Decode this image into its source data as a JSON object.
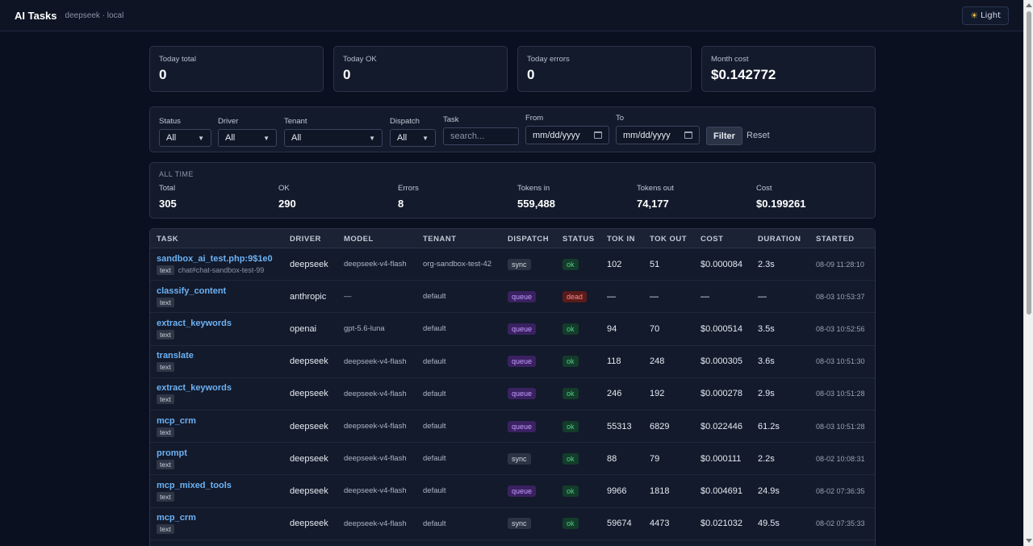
{
  "header": {
    "title": "AI Tasks",
    "subtitle": "deepseek · local",
    "theme_label": "Light",
    "theme_icon": "sun-icon"
  },
  "summary": [
    {
      "label": "Today total",
      "value": "0"
    },
    {
      "label": "Today OK",
      "value": "0"
    },
    {
      "label": "Today errors",
      "value": "0"
    },
    {
      "label": "Month cost",
      "value": "$0.142772"
    }
  ],
  "filters": {
    "status": {
      "label": "Status",
      "value": "All"
    },
    "driver": {
      "label": "Driver",
      "value": "All"
    },
    "tenant": {
      "label": "Tenant",
      "value": "All"
    },
    "dispatch": {
      "label": "Dispatch",
      "value": "All"
    },
    "task": {
      "label": "Task",
      "placeholder": "search..."
    },
    "from": {
      "label": "From",
      "placeholder": "mm/dd/yyyy"
    },
    "to": {
      "label": "To",
      "placeholder": "mm/dd/yyyy"
    },
    "filter_button": "Filter",
    "reset_button": "Reset"
  },
  "all_time": {
    "title": "ALL TIME",
    "stats": [
      {
        "label": "Total",
        "value": "305"
      },
      {
        "label": "OK",
        "value": "290"
      },
      {
        "label": "Errors",
        "value": "8"
      },
      {
        "label": "Tokens in",
        "value": "559,488"
      },
      {
        "label": "Tokens out",
        "value": "74,177"
      },
      {
        "label": "Cost",
        "value": "$0.199261"
      }
    ]
  },
  "table": {
    "columns": [
      "TASK",
      "DRIVER",
      "MODEL",
      "TENANT",
      "DISPATCH",
      "STATUS",
      "TOK IN",
      "TOK OUT",
      "COST",
      "DURATION",
      "STARTED"
    ],
    "rows": [
      {
        "task": "sandbox_ai_test.php:9$1e0",
        "tag": "text",
        "extra": "chat#chat-sandbox-test-99",
        "driver": "deepseek",
        "model": "deepseek-v4-flash",
        "tenant": "org-sandbox-test-42",
        "dispatch": "sync",
        "status": "ok",
        "tok_in": "102",
        "tok_out": "51",
        "cost": "$0.000084",
        "duration": "2.3s",
        "started": "08-09 11:28:10"
      },
      {
        "task": "classify_content",
        "tag": "text",
        "extra": "",
        "driver": "anthropic",
        "model": "—",
        "tenant": "default",
        "dispatch": "queue",
        "status": "dead",
        "tok_in": "—",
        "tok_out": "—",
        "cost": "—",
        "duration": "—",
        "started": "08-03 10:53:37"
      },
      {
        "task": "extract_keywords",
        "tag": "text",
        "extra": "",
        "driver": "openai",
        "model": "gpt-5.6-luna",
        "tenant": "default",
        "dispatch": "queue",
        "status": "ok",
        "tok_in": "94",
        "tok_out": "70",
        "cost": "$0.000514",
        "duration": "3.5s",
        "started": "08-03 10:52:56"
      },
      {
        "task": "translate",
        "tag": "text",
        "extra": "",
        "driver": "deepseek",
        "model": "deepseek-v4-flash",
        "tenant": "default",
        "dispatch": "queue",
        "status": "ok",
        "tok_in": "118",
        "tok_out": "248",
        "cost": "$0.000305",
        "duration": "3.6s",
        "started": "08-03 10:51:30"
      },
      {
        "task": "extract_keywords",
        "tag": "text",
        "extra": "",
        "driver": "deepseek",
        "model": "deepseek-v4-flash",
        "tenant": "default",
        "dispatch": "queue",
        "status": "ok",
        "tok_in": "246",
        "tok_out": "192",
        "cost": "$0.000278",
        "duration": "2.9s",
        "started": "08-03 10:51:28"
      },
      {
        "task": "mcp_crm",
        "tag": "text",
        "extra": "",
        "driver": "deepseek",
        "model": "deepseek-v4-flash",
        "tenant": "default",
        "dispatch": "queue",
        "status": "ok",
        "tok_in": "55313",
        "tok_out": "6829",
        "cost": "$0.022446",
        "duration": "61.2s",
        "started": "08-03 10:51:28"
      },
      {
        "task": "prompt",
        "tag": "text",
        "extra": "",
        "driver": "deepseek",
        "model": "deepseek-v4-flash",
        "tenant": "default",
        "dispatch": "sync",
        "status": "ok",
        "tok_in": "88",
        "tok_out": "79",
        "cost": "$0.000111",
        "duration": "2.2s",
        "started": "08-02 10:08:31"
      },
      {
        "task": "mcp_mixed_tools",
        "tag": "text",
        "extra": "",
        "driver": "deepseek",
        "model": "deepseek-v4-flash",
        "tenant": "default",
        "dispatch": "queue",
        "status": "ok",
        "tok_in": "9966",
        "tok_out": "1818",
        "cost": "$0.004691",
        "duration": "24.9s",
        "started": "08-02 07:36:35"
      },
      {
        "task": "mcp_crm",
        "tag": "text",
        "extra": "",
        "driver": "deepseek",
        "model": "deepseek-v4-flash",
        "tenant": "default",
        "dispatch": "sync",
        "status": "ok",
        "tok_in": "59674",
        "tok_out": "4473",
        "cost": "$0.021032",
        "duration": "49.5s",
        "started": "08-02 07:35:33"
      }
    ]
  }
}
